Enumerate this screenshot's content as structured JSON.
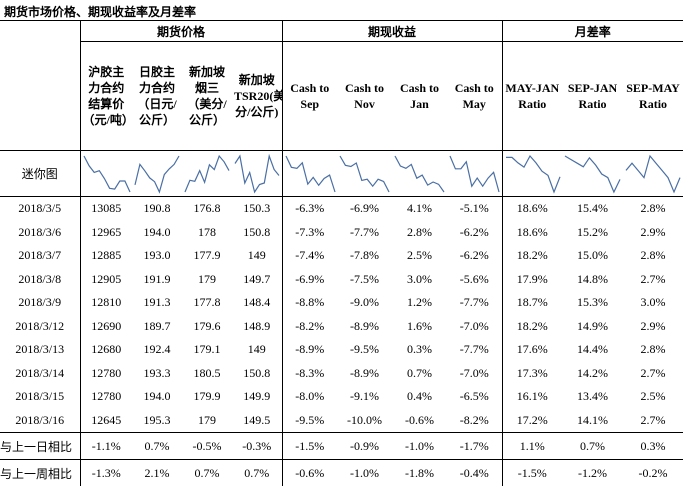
{
  "header": {
    "title": "期货市场价格、期现收益率及月差率"
  },
  "table": {
    "groups": [
      {
        "label": "期货价格",
        "span": 4
      },
      {
        "label": "期现收益",
        "span": 4
      },
      {
        "label": "月差率",
        "span": 3
      }
    ],
    "columns": [
      "沪胶主力合约结算价（元/吨）",
      "日胶主力合约（日元/公斤）",
      "新加坡烟三（美分/公斤）",
      "新加坡TSR20(美分/公斤)",
      "Cash to Sep",
      "Cash to Nov",
      "Cash to Jan",
      "Cash to May",
      "MAY-JAN Ratio",
      "SEP-JAN Ratio",
      "SEP-MAY Ratio"
    ],
    "sparkline_label": "迷你图",
    "rows": [
      [
        "2018/3/5",
        "13085",
        "190.8",
        "176.8",
        "150.3",
        "-6.3%",
        "-6.9%",
        "4.1%",
        "-5.1%",
        "18.6%",
        "15.4%",
        "2.8%"
      ],
      [
        "2018/3/6",
        "12965",
        "194.0",
        "178",
        "150.8",
        "-7.3%",
        "-7.7%",
        "2.8%",
        "-6.2%",
        "18.6%",
        "15.2%",
        "2.9%"
      ],
      [
        "2018/3/7",
        "12885",
        "193.0",
        "177.9",
        "149",
        "-7.4%",
        "-7.8%",
        "2.5%",
        "-6.2%",
        "18.2%",
        "15.0%",
        "2.8%"
      ],
      [
        "2018/3/8",
        "12905",
        "191.9",
        "179",
        "149.7",
        "-6.9%",
        "-7.5%",
        "3.0%",
        "-5.6%",
        "17.9%",
        "14.8%",
        "2.7%"
      ],
      [
        "2018/3/9",
        "12810",
        "191.3",
        "177.8",
        "148.4",
        "-8.8%",
        "-9.0%",
        "1.2%",
        "-7.7%",
        "18.7%",
        "15.3%",
        "3.0%"
      ],
      [
        "2018/3/12",
        "12690",
        "189.7",
        "179.6",
        "148.9",
        "-8.2%",
        "-8.9%",
        "1.6%",
        "-7.0%",
        "18.2%",
        "14.9%",
        "2.9%"
      ],
      [
        "2018/3/13",
        "12680",
        "192.4",
        "179.1",
        "149",
        "-8.9%",
        "-9.5%",
        "0.3%",
        "-7.7%",
        "17.6%",
        "14.4%",
        "2.8%"
      ],
      [
        "2018/3/14",
        "12780",
        "193.3",
        "180.5",
        "150.8",
        "-8.3%",
        "-8.9%",
        "0.7%",
        "-7.0%",
        "17.3%",
        "14.2%",
        "2.7%"
      ],
      [
        "2018/3/15",
        "12780",
        "194.0",
        "179.9",
        "149.9",
        "-8.0%",
        "-9.1%",
        "0.4%",
        "-6.5%",
        "16.1%",
        "13.4%",
        "2.5%"
      ],
      [
        "2018/3/16",
        "12645",
        "195.3",
        "179",
        "149.5",
        "-9.5%",
        "-10.0%",
        "-0.6%",
        "-8.2%",
        "17.2%",
        "14.1%",
        "2.7%"
      ]
    ],
    "summary_rows": [
      [
        "与上一日相比",
        "-1.1%",
        "0.7%",
        "-0.5%",
        "-0.3%",
        "-1.5%",
        "-0.9%",
        "-1.0%",
        "-1.7%",
        "1.1%",
        "0.7%",
        "0.3%"
      ],
      [
        "与上一周相比",
        "-1.3%",
        "2.1%",
        "0.7%",
        "0.7%",
        "-0.6%",
        "-1.0%",
        "-1.8%",
        "-0.4%",
        "-1.5%",
        "-1.2%",
        "-0.2%"
      ]
    ]
  }
}
